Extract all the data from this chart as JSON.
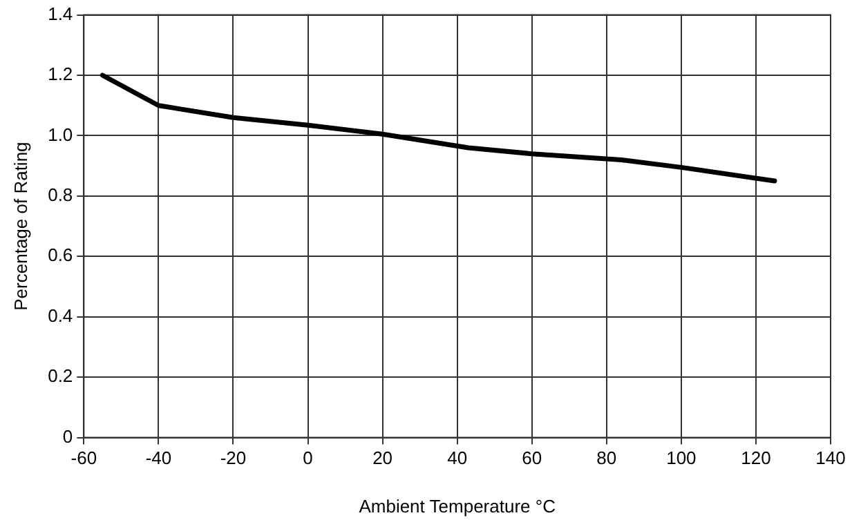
{
  "chart_data": {
    "type": "line",
    "xlabel": "Ambient Temperature °C",
    "ylabel": "Percentage of Rating",
    "x": [
      -55,
      -40,
      -20,
      0,
      20,
      43,
      60,
      84,
      100,
      125
    ],
    "series": [
      {
        "color": "#000000",
        "values": [
          1.2,
          1.1,
          1.06,
          1.035,
          1.005,
          0.96,
          0.94,
          0.92,
          0.895,
          0.85
        ]
      }
    ],
    "xlim": [
      -60,
      140
    ],
    "xticks": [
      -60,
      -40,
      -20,
      0,
      20,
      40,
      60,
      80,
      100,
      120,
      140
    ],
    "ylim": [
      0,
      1.4
    ],
    "yticks": [
      0,
      0.2,
      0.4,
      0.6,
      0.8,
      {
        "value": 1,
        "label": "1.0"
      },
      1.2,
      1.4
    ],
    "grid": true,
    "legend": false,
    "marker": "none",
    "line_style": "solid"
  }
}
